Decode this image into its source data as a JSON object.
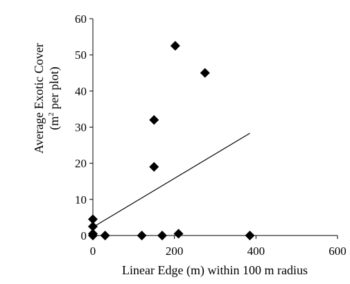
{
  "chart_data": {
    "type": "scatter",
    "title": "",
    "xlabel": "Linear Edge (m) within 100 m radius",
    "ylabel": {
      "line1": "Average Exotic Cover",
      "line2_open": "(m",
      "line2_sup": "2",
      "line2_rest": " per plot)"
    },
    "xlim": [
      0,
      600
    ],
    "ylim": [
      0,
      60
    ],
    "xticks": [
      0,
      200,
      400,
      600
    ],
    "yticks": [
      0,
      10,
      20,
      30,
      40,
      50,
      60
    ],
    "grid": false,
    "legend": "none",
    "marker": "diamond",
    "marker_color": "#000000",
    "series": [
      {
        "points": [
          {
            "x": 0,
            "y": 4.5
          },
          {
            "x": 0,
            "y": 2.5
          },
          {
            "x": 0,
            "y": 0.5
          },
          {
            "x": 0,
            "y": 0
          },
          {
            "x": 30,
            "y": 0
          },
          {
            "x": 120,
            "y": 0
          },
          {
            "x": 150,
            "y": 19
          },
          {
            "x": 150,
            "y": 32
          },
          {
            "x": 170,
            "y": 0
          },
          {
            "x": 202,
            "y": 52.5
          },
          {
            "x": 210,
            "y": 0.5
          },
          {
            "x": 275,
            "y": 45
          },
          {
            "x": 385,
            "y": 0
          }
        ]
      }
    ],
    "trendline": {
      "type": "linear",
      "x": [
        0,
        385
      ],
      "y": [
        2.3,
        28.3
      ],
      "color": "#000000"
    }
  }
}
